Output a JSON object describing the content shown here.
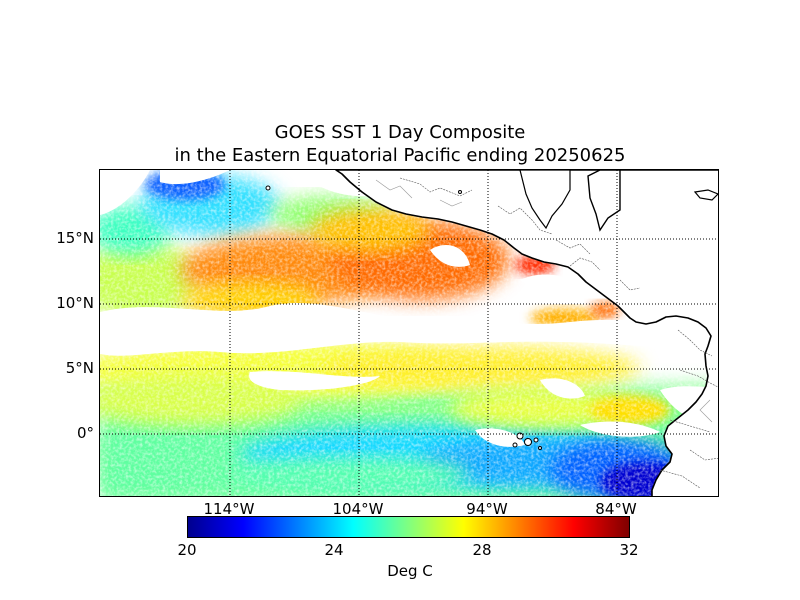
{
  "title": {
    "line1": "GOES SST 1 Day Composite",
    "line2": "in the Eastern Equatorial Pacific ending 20250625"
  },
  "map": {
    "lat_labels": [
      "15°N",
      "10°N",
      "5°N",
      "0°"
    ],
    "lon_labels": [
      "114°W",
      "104°W",
      "94°W",
      "84°W"
    ],
    "gridlines": "dotted",
    "land_color": "#ffffff",
    "missing_data_color": "#ffffff"
  },
  "colorbar": {
    "ticks": [
      "20",
      "24",
      "28",
      "32"
    ],
    "label": "Deg C",
    "colormap": "jet",
    "colors": [
      "#00008f",
      "#0000ff",
      "#0080ff",
      "#00ffff",
      "#80ff80",
      "#ffff00",
      "#ff8000",
      "#ff0000",
      "#800000"
    ]
  }
}
